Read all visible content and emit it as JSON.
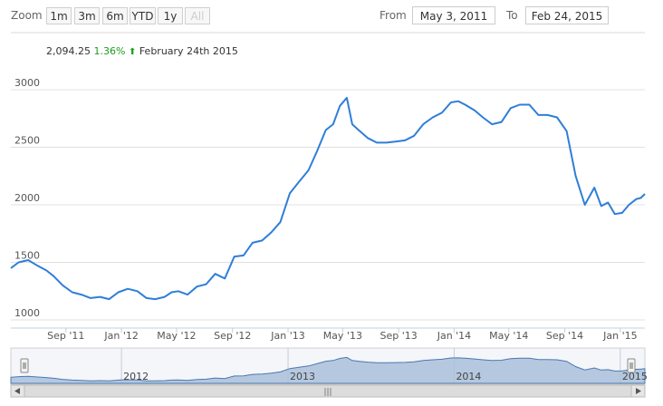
{
  "toolbar": {
    "zoom_label": "Zoom",
    "buttons": [
      "1m",
      "3m",
      "6m",
      "YTD",
      "1y",
      "All"
    ],
    "from_label": "From",
    "from_value": "May 3, 2011",
    "to_label": "To",
    "to_value": "Feb 24, 2015"
  },
  "tooltip": {
    "value": "2,094.25",
    "change": "1.36%",
    "date": "February 24th 2015"
  },
  "navigator": {
    "year_labels": [
      "2012",
      "2013",
      "2014",
      "2015"
    ],
    "scrollbar_grip": "|||"
  },
  "colors": {
    "line": "#2f7ed8",
    "navigator_fill": "#a9bfd9",
    "grid": "#e0e0e0",
    "positive": "#1a9e1a"
  },
  "chart_data": {
    "type": "line",
    "x_tick_labels": [
      "Sep '11",
      "Jan '12",
      "May '12",
      "Sep '12",
      "Jan '13",
      "May '13",
      "Sep '13",
      "Jan '14",
      "May '14",
      "Sep '14",
      "Jan '15"
    ],
    "y_tick_labels": [
      "1000",
      "1500",
      "2000",
      "2500",
      "3000"
    ],
    "ylim": [
      1000,
      3000
    ],
    "xlim": [
      "2011-05-03",
      "2015-02-24"
    ],
    "grid": true,
    "series": [
      {
        "x": [
          "2011-05-03",
          "2011-05-20",
          "2011-06-10",
          "2011-07-01",
          "2011-07-20",
          "2011-08-05",
          "2011-08-25",
          "2011-09-15",
          "2011-10-05",
          "2011-10-25",
          "2011-11-15",
          "2011-12-05",
          "2011-12-25",
          "2012-01-15",
          "2012-02-05",
          "2012-02-25",
          "2012-03-15",
          "2012-04-05",
          "2012-04-20",
          "2012-05-05",
          "2012-05-25",
          "2012-06-15",
          "2012-07-05",
          "2012-07-25",
          "2012-08-15",
          "2012-09-05",
          "2012-09-25",
          "2012-10-15",
          "2012-11-05",
          "2012-11-25",
          "2012-12-15",
          "2013-01-05",
          "2013-01-25",
          "2013-02-15",
          "2013-03-05",
          "2013-03-25",
          "2013-04-10",
          "2013-04-25",
          "2013-05-10",
          "2013-05-22",
          "2013-06-05",
          "2013-06-25",
          "2013-07-15",
          "2013-08-05",
          "2013-08-25",
          "2013-09-15",
          "2013-10-05",
          "2013-10-25",
          "2013-11-15",
          "2013-12-05",
          "2013-12-25",
          "2014-01-10",
          "2014-01-25",
          "2014-02-15",
          "2014-03-05",
          "2014-03-25",
          "2014-04-15",
          "2014-05-05",
          "2014-05-25",
          "2014-06-15",
          "2014-07-05",
          "2014-07-25",
          "2014-08-15",
          "2014-09-05",
          "2014-09-25",
          "2014-10-15",
          "2014-11-05",
          "2014-11-20",
          "2014-12-05",
          "2014-12-20",
          "2015-01-05",
          "2015-01-20",
          "2015-02-05",
          "2015-02-15",
          "2015-02-24"
        ],
        "values": [
          1450,
          1500,
          1520,
          1470,
          1430,
          1380,
          1300,
          1240,
          1220,
          1190,
          1200,
          1180,
          1240,
          1270,
          1250,
          1190,
          1180,
          1200,
          1240,
          1250,
          1220,
          1290,
          1310,
          1400,
          1360,
          1550,
          1560,
          1670,
          1690,
          1760,
          1850,
          2100,
          2200,
          2300,
          2460,
          2650,
          2700,
          2860,
          2930,
          2700,
          2650,
          2580,
          2540,
          2540,
          2550,
          2560,
          2600,
          2700,
          2760,
          2800,
          2890,
          2900,
          2870,
          2820,
          2760,
          2700,
          2720,
          2840,
          2870,
          2870,
          2780,
          2780,
          2760,
          2640,
          2250,
          2000,
          2150,
          1990,
          2020,
          1920,
          1930,
          2000,
          2050,
          2060,
          2094.25
        ]
      }
    ]
  }
}
